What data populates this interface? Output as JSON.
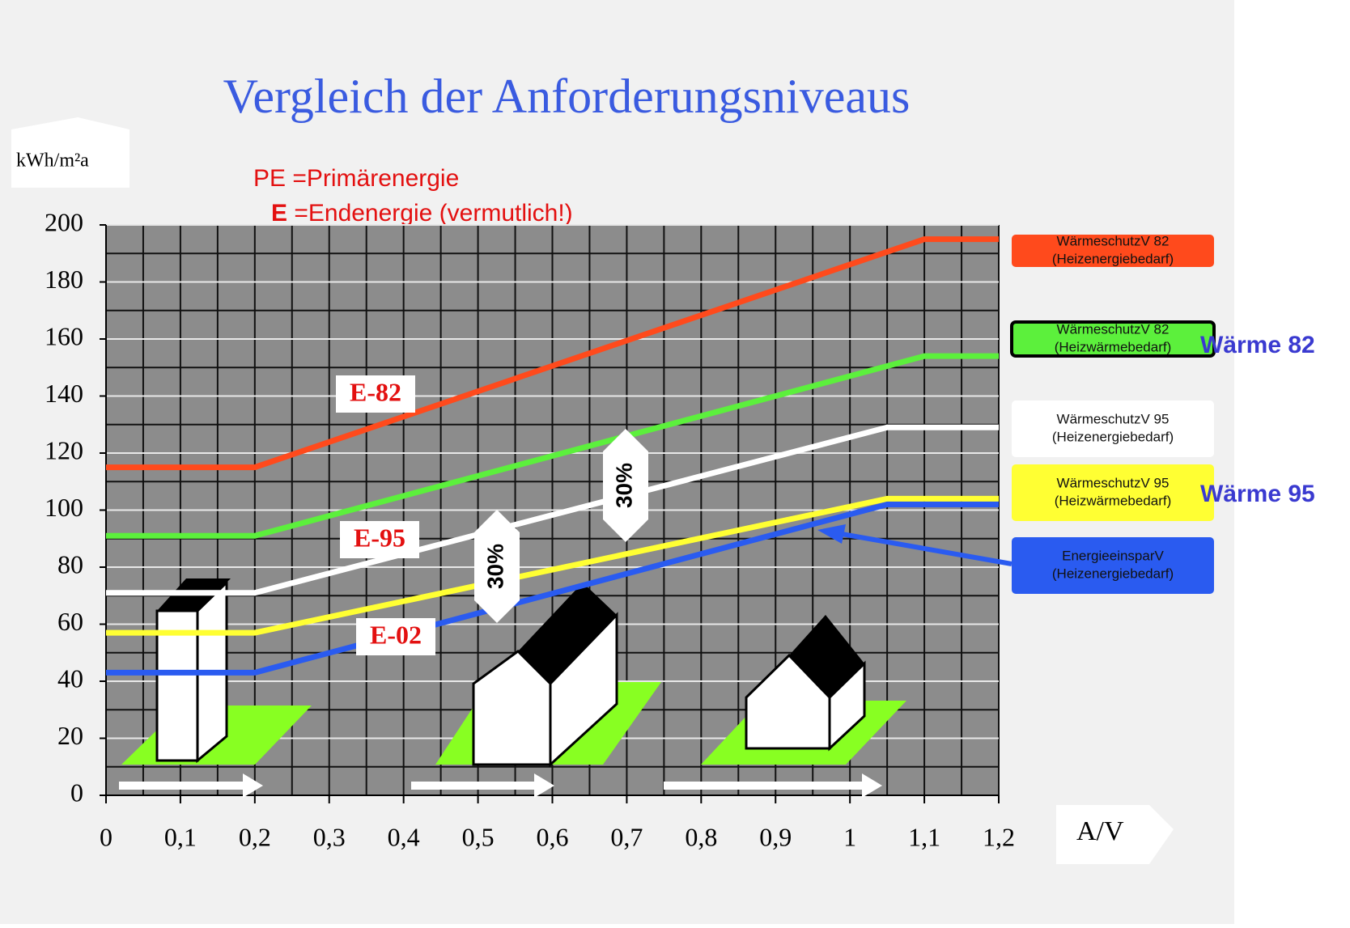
{
  "chart_data": {
    "type": "line",
    "title": "Vergleich der Anforderungsniveaus",
    "y_label": "kWh/m²a",
    "x_label": "A/V",
    "notes": [
      "PE =Primärenergie",
      "E",
      " =Endenergie (vermutlich!)"
    ],
    "annotations": [
      "E-82",
      "E-95",
      "E-02",
      "30%",
      "30%",
      "Wärme 82",
      "Wärme 95"
    ],
    "xlim": [
      0,
      1.2
    ],
    "ylim": [
      0,
      200
    ],
    "xticks": [
      0,
      {
        "value": 0.1,
        "label": "0,1"
      },
      {
        "value": 0.2,
        "label": "0,2"
      },
      {
        "value": 0.3,
        "label": "0,3"
      },
      {
        "value": 0.4,
        "label": "0,4"
      },
      {
        "value": 0.5,
        "label": "0,5"
      },
      {
        "value": 0.6,
        "label": "0,6"
      },
      {
        "value": 0.7,
        "label": "0,7"
      },
      {
        "value": 0.8,
        "label": "0,8"
      },
      {
        "value": 0.9,
        "label": "0,9"
      },
      1,
      {
        "value": 1.1,
        "label": "1,1"
      },
      {
        "value": 1.2,
        "label": "1,2"
      }
    ],
    "yticks": [
      0,
      20,
      40,
      60,
      80,
      100,
      120,
      140,
      160,
      180,
      200
    ],
    "grid": true,
    "series": [
      {
        "name": "WärmeschutzV 82",
        "sub": "(Heizenergiebedarf)",
        "color": "#ff4a1c",
        "x": [
          0,
          0.2,
          1.1,
          1.2
        ],
        "values": [
          115,
          115,
          195,
          195
        ]
      },
      {
        "name": "WärmeschutzV 82",
        "sub": "(Heizwärmebedarf)",
        "color": "#5cf03c",
        "x": [
          0,
          0.2,
          1.1,
          1.2
        ],
        "values": [
          91,
          91,
          154,
          154
        ]
      },
      {
        "name": "WärmeschutzV 95",
        "sub": "(Heizenergiebedarf)",
        "color": "#ffffff",
        "x": [
          0,
          0.2,
          1.05,
          1.2
        ],
        "values": [
          71,
          71,
          129,
          129
        ]
      },
      {
        "name": "WärmeschutzV 95",
        "sub": "(Heizwärmebedarf)",
        "color": "#ffff33",
        "x": [
          0,
          0.2,
          1.05,
          1.2
        ],
        "values": [
          57,
          57,
          104,
          104
        ]
      },
      {
        "name": "EnergieeinsparV",
        "sub": "(Heizenergiebedarf)",
        "color": "#2a5bf0",
        "x": [
          0,
          0.2,
          1.05,
          1.2
        ],
        "values": [
          43,
          43,
          102,
          102
        ]
      }
    ]
  }
}
